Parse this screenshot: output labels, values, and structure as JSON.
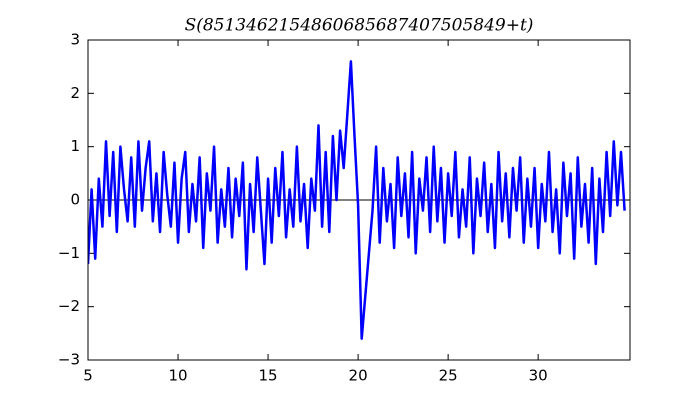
{
  "chart_data": {
    "type": "line",
    "title": "S(8513462154860685687407505849+t)",
    "x": [
      5,
      5.2,
      5.4,
      5.6,
      5.8,
      6,
      6.2,
      6.4,
      6.6,
      6.8,
      7,
      7.2,
      7.4,
      7.6,
      7.8,
      8,
      8.2,
      8.4,
      8.6,
      8.8,
      9,
      9.2,
      9.4,
      9.6,
      9.8,
      10,
      10.2,
      10.4,
      10.6,
      10.8,
      11,
      11.2,
      11.4,
      11.6,
      11.8,
      12,
      12.2,
      12.4,
      12.6,
      12.8,
      13,
      13.2,
      13.4,
      13.6,
      13.8,
      14,
      14.2,
      14.4,
      14.6,
      14.8,
      15,
      15.2,
      15.4,
      15.6,
      15.8,
      16,
      16.2,
      16.4,
      16.6,
      16.8,
      17,
      17.2,
      17.4,
      17.6,
      17.8,
      18,
      18.2,
      18.4,
      18.6,
      18.8,
      19,
      19.2,
      19.4,
      19.6,
      19.8,
      20,
      20.2,
      20.4,
      20.6,
      20.8,
      21,
      21.2,
      21.4,
      21.6,
      21.8,
      22,
      22.2,
      22.4,
      22.6,
      22.8,
      23,
      23.2,
      23.4,
      23.6,
      23.8,
      24,
      24.2,
      24.4,
      24.6,
      24.8,
      25,
      25.2,
      25.4,
      25.6,
      25.8,
      26,
      26.2,
      26.4,
      26.6,
      26.8,
      27,
      27.2,
      27.4,
      27.6,
      27.8,
      28,
      28.2,
      28.4,
      28.6,
      28.8,
      29,
      29.2,
      29.4,
      29.6,
      29.8,
      30,
      30.2,
      30.4,
      30.6,
      30.8,
      31,
      31.2,
      31.4,
      31.6,
      31.8,
      32,
      32.2,
      32.4,
      32.6,
      32.8,
      33,
      33.2,
      33.4,
      33.6,
      33.8,
      34,
      34.2,
      34.4,
      34.6,
      34.8
    ],
    "series": [
      {
        "color": "#0000ff",
        "values": [
          -1.2,
          0.2,
          -1.1,
          0.4,
          -0.5,
          1.1,
          -0.3,
          0.9,
          -0.6,
          1.0,
          0.2,
          -0.4,
          0.8,
          -0.5,
          1.1,
          -0.2,
          0.6,
          1.1,
          -0.4,
          0.5,
          -0.6,
          0.9,
          0.1,
          -0.5,
          0.7,
          -0.8,
          0.4,
          0.9,
          -0.6,
          0.3,
          -0.4,
          0.8,
          -0.9,
          0.5,
          -0.2,
          1.0,
          -0.8,
          0.2,
          -0.5,
          0.6,
          -0.7,
          0.4,
          -0.3,
          0.7,
          -1.3,
          0.3,
          -0.6,
          0.8,
          -0.2,
          -1.2,
          0.4,
          -0.8,
          0.6,
          -0.3,
          0.9,
          -0.7,
          0.2,
          -0.5,
          1.0,
          -0.4,
          0.3,
          -0.9,
          0.4,
          -0.2,
          1.4,
          -0.5,
          0.9,
          -0.6,
          1.2,
          0.0,
          1.3,
          0.6,
          1.6,
          2.6,
          1.2,
          -0.1,
          -2.6,
          -1.8,
          -1.0,
          -0.2,
          1.0,
          -0.8,
          0.6,
          -0.4,
          0.3,
          -0.9,
          0.8,
          -0.3,
          0.5,
          -0.7,
          0.9,
          -1.0,
          0.4,
          -0.2,
          0.8,
          -0.6,
          1.0,
          -0.4,
          0.6,
          -0.8,
          0.5,
          -0.3,
          0.9,
          -0.7,
          0.2,
          -0.5,
          0.8,
          -1.0,
          0.4,
          -0.3,
          0.7,
          -0.6,
          0.3,
          -0.9,
          0.9,
          -0.4,
          0.5,
          -0.7,
          0.6,
          -0.2,
          0.8,
          -0.8,
          0.4,
          -0.5,
          0.6,
          -0.9,
          0.3,
          -0.4,
          0.9,
          -0.6,
          0.2,
          -1.0,
          0.7,
          -0.3,
          0.5,
          -1.1,
          0.8,
          -0.5,
          0.3,
          -0.8,
          0.6,
          -1.2,
          0.4,
          -0.6,
          0.9,
          -0.3,
          1.1,
          -0.1,
          0.9,
          -0.2
        ]
      }
    ],
    "hline": 0,
    "xlim": [
      5,
      35.1
    ],
    "xticks": [
      5,
      10,
      15,
      20,
      25,
      30
    ],
    "ylim": [
      -3,
      3
    ],
    "yticks": [
      {
        "value": -3,
        "label": "−3"
      },
      {
        "value": -2,
        "label": "−2"
      },
      {
        "value": -1,
        "label": "−1"
      },
      0,
      1,
      2,
      3
    ]
  }
}
